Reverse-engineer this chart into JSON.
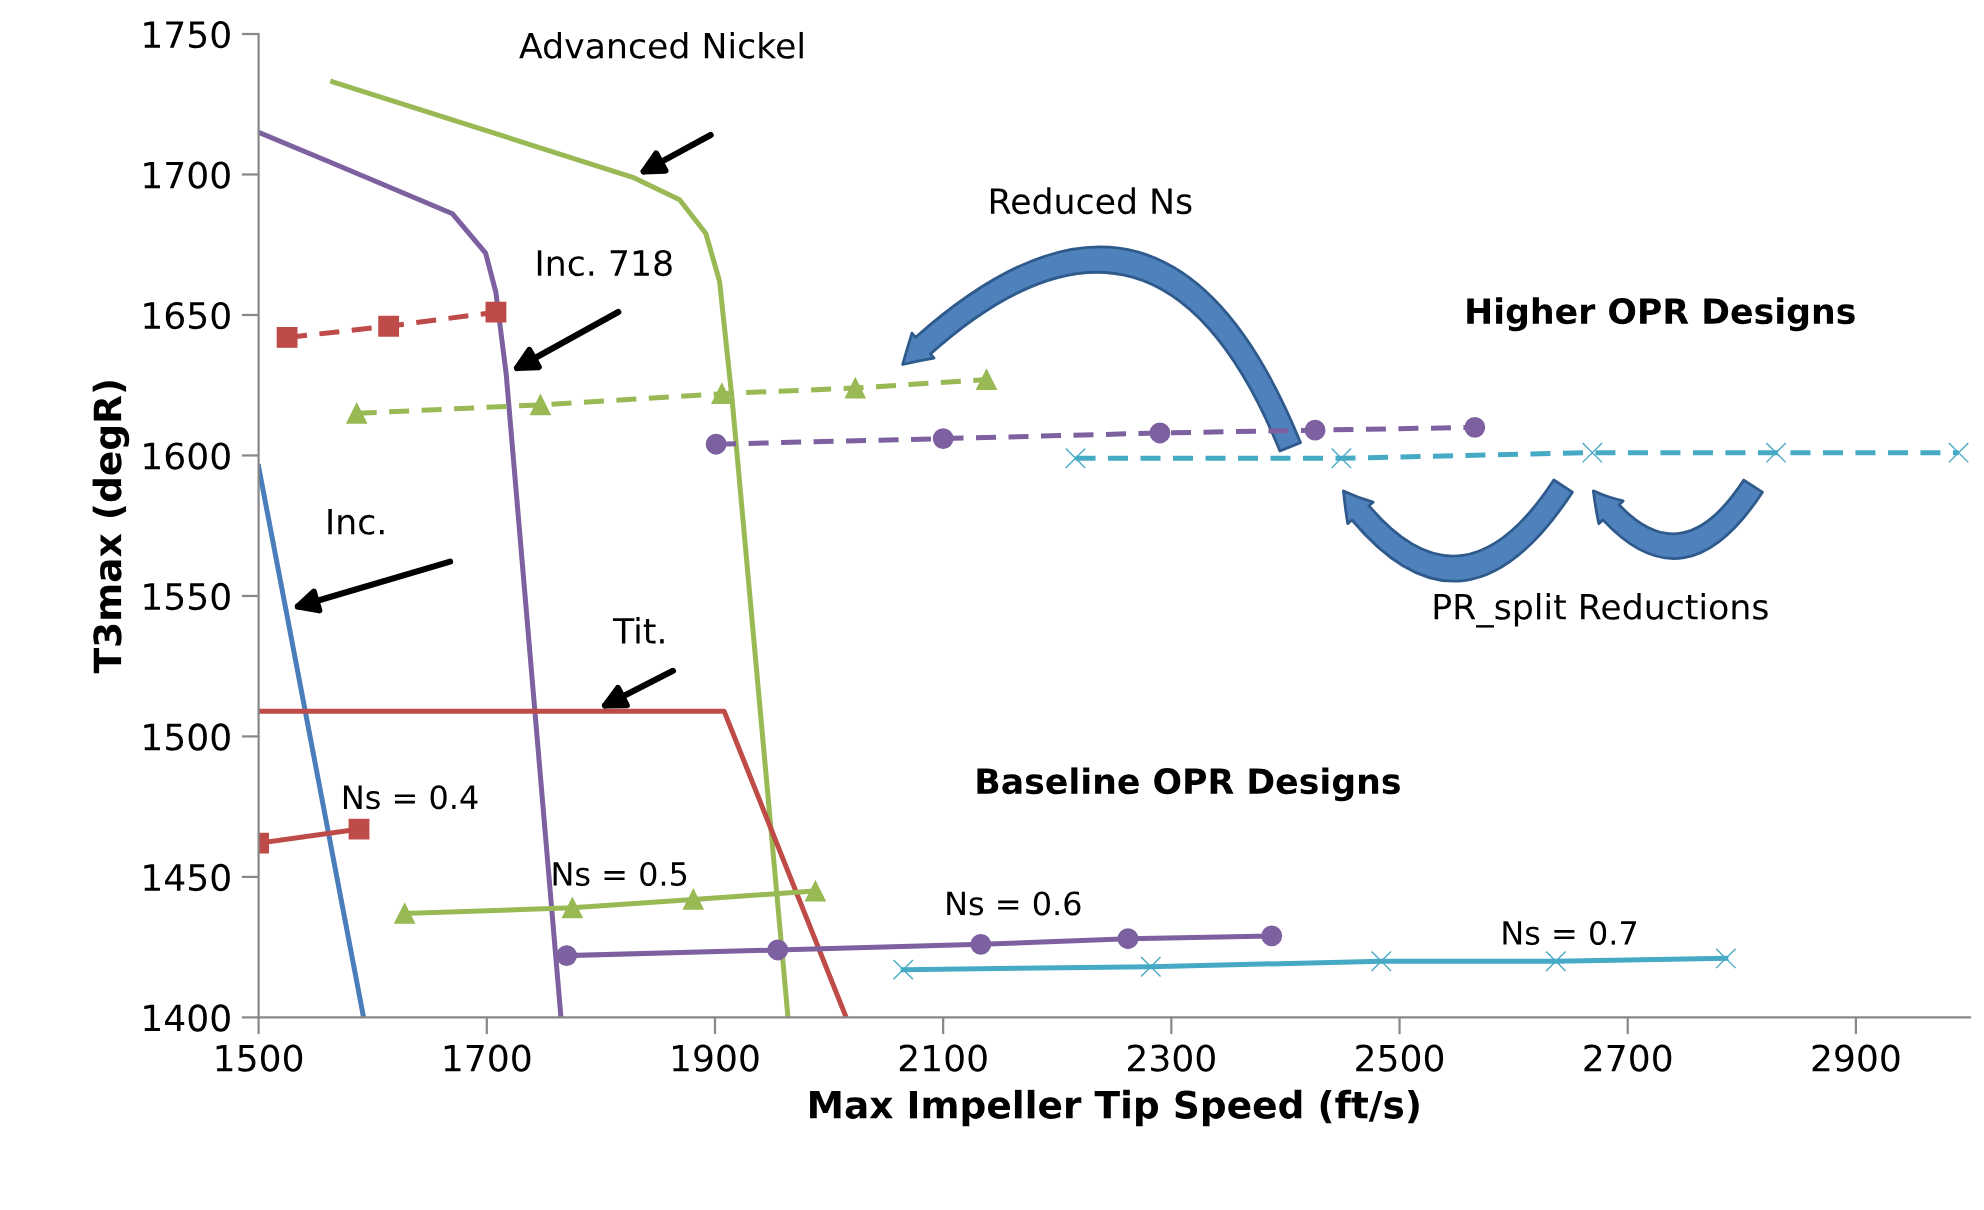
{
  "chart_data": {
    "type": "line",
    "xlabel": "Max Impeller Tip Speed (ft/s)",
    "ylabel": "T3max (degR)",
    "xlim": [
      1500,
      3000
    ],
    "xticks": [
      1500,
      1700,
      1900,
      2100,
      2300,
      2500,
      2700,
      2900
    ],
    "ylim": [
      1400,
      1750
    ],
    "yticks": [
      1400,
      1450,
      1500,
      1550,
      1600,
      1650,
      1700,
      1750
    ],
    "grid": false,
    "legend": false,
    "series": [
      {
        "name": "Inc.",
        "color": "#4a7ebb",
        "marker": "none",
        "line_style": "solid",
        "x": [
          1500,
          1524,
          1592
        ],
        "values": [
          1596,
          1545,
          1400
        ]
      },
      {
        "name": "Inc. 718",
        "color": "#7d60a0",
        "marker": "none",
        "line_style": "solid",
        "x": [
          1500,
          1565,
          1670,
          1699,
          1708,
          1717,
          1765
        ],
        "values": [
          1715,
          1704,
          1686,
          1672,
          1658,
          1629,
          1400
        ]
      },
      {
        "name": "Advanced Nickel",
        "color": "#98b954",
        "marker": "none",
        "line_style": "solid",
        "x": [
          1565,
          1828,
          1869,
          1892,
          1904,
          1915,
          1964
        ],
        "values": [
          1733,
          1699,
          1691,
          1679,
          1662,
          1620,
          1400
        ]
      },
      {
        "name": "Tit.",
        "color": "#be4b48",
        "marker": "none",
        "line_style": "solid",
        "x": [
          1500,
          1794,
          1908,
          2015
        ],
        "values": [
          1509,
          1509,
          1509,
          1400
        ]
      },
      {
        "name": "Ns = 0.4",
        "color": "#be4b48",
        "marker": "square",
        "line_style": "solid",
        "x": [
          1500,
          1588
        ],
        "values": [
          1462,
          1467
        ]
      },
      {
        "name": "Ns = 0.5",
        "color": "#98b954",
        "marker": "triangle",
        "line_style": "solid",
        "x": [
          1628,
          1775,
          1881,
          1988
        ],
        "values": [
          1437,
          1439,
          1442,
          1445
        ]
      },
      {
        "name": "Ns = 0.6",
        "color": "#7d60a0",
        "marker": "circle",
        "line_style": "solid",
        "x": [
          1770,
          1955,
          2133,
          2262,
          2388
        ],
        "values": [
          1422,
          1424,
          1426,
          1428,
          1429
        ]
      },
      {
        "name": "Ns = 0.7",
        "color": "#46aac5",
        "marker": "cross",
        "line_style": "solid",
        "x": [
          2065,
          2282,
          2484,
          2637,
          2786
        ],
        "values": [
          1417,
          1418,
          1420,
          1420,
          1421
        ]
      },
      {
        "color": "#be4b48",
        "marker": "square",
        "line_style": "dashed",
        "x": [
          1525,
          1614,
          1708
        ],
        "values": [
          1642,
          1646,
          1651
        ]
      },
      {
        "color": "#98b954",
        "marker": "triangle",
        "line_style": "dashed",
        "x": [
          1586,
          1747,
          1906,
          2023,
          2138
        ],
        "values": [
          1615,
          1618,
          1622,
          1624,
          1627
        ]
      },
      {
        "color": "#7d60a0",
        "marker": "circle",
        "line_style": "dashed",
        "x": [
          1901,
          2100,
          2290,
          2426,
          2566
        ],
        "values": [
          1604,
          1606,
          1608,
          1609,
          1610
        ]
      },
      {
        "color": "#46aac5",
        "marker": "cross",
        "line_style": "dashed",
        "x": [
          2216,
          2449,
          2669,
          2830,
          2990
        ],
        "values": [
          1599,
          1599,
          1601,
          1601,
          1601
        ]
      }
    ],
    "annotations": [
      "Reduced Ns",
      "Higher OPR Designs",
      "Baseline OPR Designs",
      "PR_split Reductions"
    ]
  }
}
